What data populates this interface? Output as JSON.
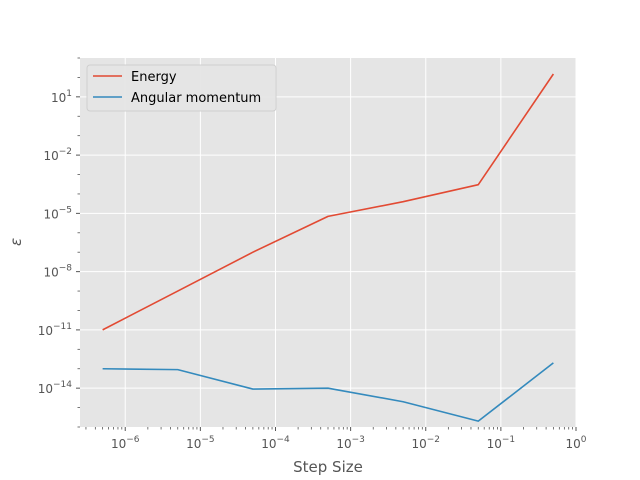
{
  "chart_data": {
    "type": "line",
    "xscale": "log",
    "yscale": "log",
    "xlabel": "Step Size",
    "ylabel": "ε",
    "xlim": [
      2.5e-07,
      1
    ],
    "ylim": [
      1e-16,
      1000.0
    ],
    "grid": true,
    "legend_position": "top-left",
    "x": [
      5e-07,
      5e-06,
      5e-05,
      0.0005,
      0.005,
      0.05,
      0.5
    ],
    "series": [
      {
        "name": "Energy",
        "color": "#e24a33",
        "values": [
          1e-11,
          1e-09,
          1e-07,
          7e-06,
          4e-05,
          0.0003,
          150
        ]
      },
      {
        "name": "Angular momentum",
        "color": "#348abd",
        "values": [
          1e-13,
          9e-14,
          9e-15,
          1e-14,
          2e-15,
          2e-16,
          2e-13
        ]
      }
    ],
    "xticks": [
      {
        "base": "10",
        "exp": "−6",
        "value": 1e-06
      },
      {
        "base": "10",
        "exp": "−5",
        "value": 1e-05
      },
      {
        "base": "10",
        "exp": "−4",
        "value": 0.0001
      },
      {
        "base": "10",
        "exp": "−3",
        "value": 0.001
      },
      {
        "base": "10",
        "exp": "−2",
        "value": 0.01
      },
      {
        "base": "10",
        "exp": "−1",
        "value": 0.1
      },
      {
        "base": "10",
        "exp": "0",
        "value": 1
      }
    ],
    "yticks": [
      {
        "base": "10",
        "exp": "1",
        "value": 10.0
      },
      {
        "base": "10",
        "exp": "−2",
        "value": 0.01
      },
      {
        "base": "10",
        "exp": "−5",
        "value": 1e-05
      },
      {
        "base": "10",
        "exp": "−8",
        "value": 1e-08
      },
      {
        "base": "10",
        "exp": "−11",
        "value": 1e-11
      },
      {
        "base": "10",
        "exp": "−14",
        "value": 1e-14
      }
    ],
    "colors": {
      "background": "#e5e5e5",
      "grid": "#ffffff",
      "tick": "#555555"
    }
  }
}
